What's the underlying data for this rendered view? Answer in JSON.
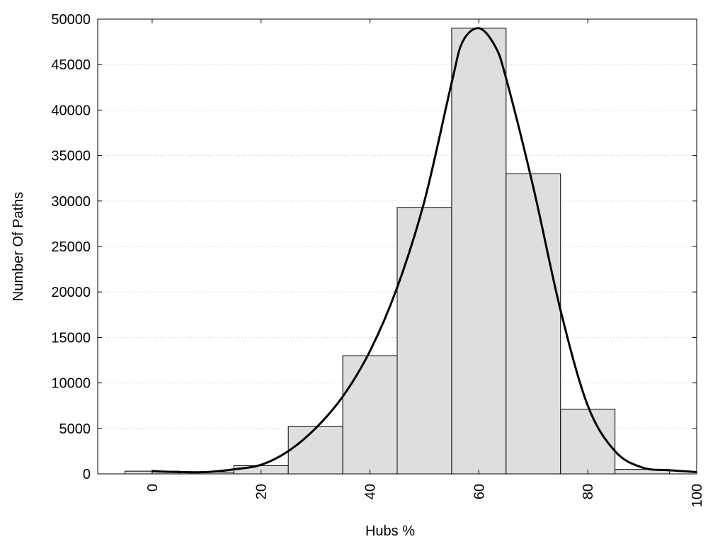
{
  "chart_data": {
    "type": "bar",
    "title": "",
    "xlabel": "Hubs %",
    "ylabel": "Number Of Paths",
    "xlim": [
      -10,
      100
    ],
    "ylim": [
      0,
      50000
    ],
    "x_ticks": [
      0,
      20,
      40,
      60,
      80,
      100
    ],
    "x_tick_labels": [
      "0",
      "20",
      "40",
      "60",
      "80",
      "100"
    ],
    "y_ticks": [
      0,
      5000,
      10000,
      15000,
      20000,
      25000,
      30000,
      35000,
      40000,
      45000,
      50000
    ],
    "y_tick_labels": [
      "0",
      "5000",
      "10000",
      "15000",
      "20000",
      "25000",
      "30000",
      "35000",
      "40000",
      "45000",
      "50000"
    ],
    "grid": true,
    "legend": "none",
    "bar_width": 10,
    "bars": {
      "x": [
        0,
        10,
        20,
        30,
        40,
        50,
        60,
        70,
        80,
        90
      ],
      "values": [
        300,
        200,
        900,
        5200,
        13000,
        29300,
        49000,
        33000,
        7100,
        500
      ]
    },
    "density_curve": {
      "x": [
        0,
        5,
        10,
        15,
        20,
        25,
        30,
        35,
        40,
        45,
        50,
        55,
        57,
        60,
        63,
        65,
        70,
        75,
        80,
        85,
        90,
        95,
        100
      ],
      "y": [
        300,
        200,
        200,
        500,
        1000,
        2500,
        5000,
        8500,
        13500,
        20500,
        30000,
        43000,
        47500,
        49000,
        47000,
        43500,
        31500,
        18000,
        7500,
        2500,
        700,
        400,
        200
      ]
    },
    "colors": {
      "bar_fill": "#dedede",
      "bar_stroke": "#000000",
      "curve": "#000000",
      "grid": "#c8c8c8"
    }
  }
}
